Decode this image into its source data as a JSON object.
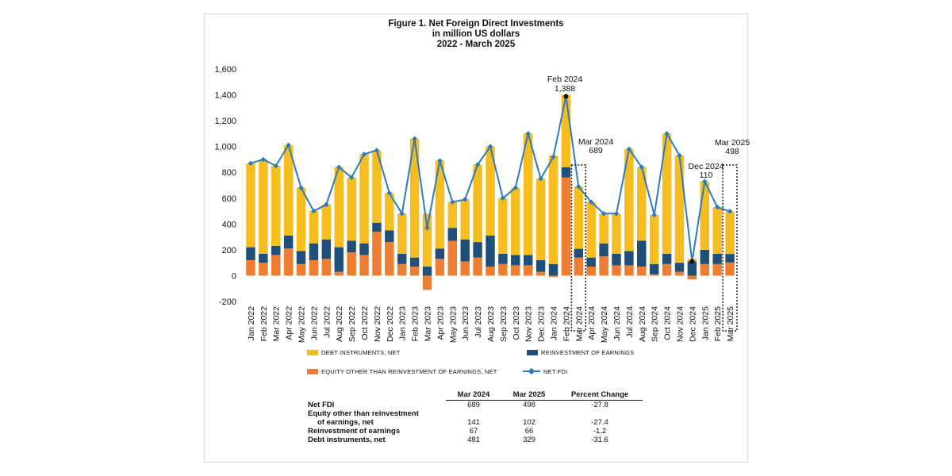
{
  "title": {
    "line1": "Figure 1. Net Foreign Direct Investments",
    "line2": "in million US dollars",
    "line3": "2022 - March 2025"
  },
  "colors": {
    "debt": "#f5bd1f",
    "reinvest": "#1f4e79",
    "equity": "#ed7d31",
    "net": "#2c7bbf"
  },
  "legend": {
    "debt": "DEBT INSTRUMENTS, NET",
    "reinvest": "REINVESTMENT OF EARNINGS",
    "equity": "EQUITY OTHER THAN REINVESTMENT OF EARNINGS, NET",
    "net": "NET FDI"
  },
  "chart_data": {
    "type": "bar",
    "stacked": true,
    "ylim": [
      -200,
      1600
    ],
    "yticks": [
      -200,
      0,
      200,
      400,
      600,
      800,
      1000,
      1200,
      1400,
      1600
    ],
    "ytick_labels": [
      "-200",
      "0",
      "200",
      "400",
      "600",
      "800",
      "1,000",
      "1,200",
      "1,400",
      "1,600"
    ],
    "categories": [
      "Jan 2022",
      "Feb 2022",
      "Mar 2022",
      "Apr 2022",
      "May 2022",
      "Jun 2022",
      "Jul 2022",
      "Aug 2022",
      "Sep 2022",
      "Oct 2022",
      "Nov 2022",
      "Dec 2022",
      "Jan 2023",
      "Feb 2023",
      "Mar 2023",
      "Apr 2023",
      "May 2023",
      "Jun 2023",
      "Jul 2023",
      "Aug 2023",
      "Sep 2023",
      "Oct 2023",
      "Nov 2023",
      "Dec 2023",
      "Jan 2024",
      "Feb 2024",
      "Mar 2024",
      "Apr 2024",
      "May 2024",
      "Jun 2024",
      "Jul 2024",
      "Aug 2024",
      "Sep 2024",
      "Oct 2024",
      "Nov 2024",
      "Dec 2024",
      "Jan 2025",
      "Feb 2025",
      "Mar 2025"
    ],
    "series": [
      {
        "name": "EQUITY OTHER THAN REINVESTMENT OF EARNINGS, NET",
        "values": [
          120,
          100,
          160,
          210,
          90,
          120,
          130,
          30,
          180,
          160,
          340,
          260,
          90,
          70,
          -110,
          130,
          270,
          110,
          140,
          70,
          90,
          80,
          80,
          30,
          -10,
          760,
          141,
          70,
          150,
          80,
          80,
          70,
          10,
          90,
          30,
          -30,
          90,
          90,
          102
        ]
      },
      {
        "name": "REINVESTMENT OF EARNINGS",
        "values": [
          100,
          70,
          70,
          100,
          100,
          130,
          150,
          190,
          90,
          90,
          70,
          90,
          80,
          70,
          70,
          80,
          100,
          170,
          120,
          240,
          80,
          80,
          80,
          90,
          90,
          80,
          67,
          70,
          100,
          90,
          110,
          200,
          80,
          80,
          70,
          110,
          110,
          80,
          66
        ]
      },
      {
        "name": "DEBT INSTRUMENTS, NET",
        "values": [
          650,
          730,
          620,
          700,
          490,
          250,
          270,
          620,
          490,
          690,
          560,
          290,
          310,
          920,
          410,
          680,
          200,
          310,
          600,
          690,
          430,
          520,
          940,
          630,
          840,
          560,
          481,
          430,
          230,
          310,
          790,
          570,
          380,
          930,
          830,
          20,
          530,
          360,
          329
        ]
      },
      {
        "name": "NET FDI",
        "type": "line",
        "values": [
          870,
          900,
          850,
          1010,
          680,
          500,
          550,
          840,
          760,
          940,
          970,
          640,
          480,
          1060,
          370,
          890,
          570,
          590,
          860,
          1000,
          600,
          680,
          1100,
          750,
          920,
          1388,
          689,
          570,
          480,
          480,
          980,
          840,
          470,
          1100,
          930,
          110,
          730,
          530,
          498
        ]
      }
    ],
    "annotations": [
      {
        "label": "Feb 2024",
        "value": "1,388",
        "index": 25
      },
      {
        "label": "Mar 2024",
        "value": "689",
        "index": 26
      },
      {
        "label": "Dec 2024",
        "value": "110",
        "index": 35
      },
      {
        "label": "Mar 2025",
        "value": "498",
        "index": 38
      }
    ],
    "highlight_indices": [
      26,
      38
    ]
  },
  "table": {
    "headers": [
      "Mar 2024",
      "Mar 2025",
      "Percent Change"
    ],
    "rows": [
      {
        "label": "Net FDI",
        "label2": "",
        "values": [
          "689",
          "498",
          "-27.8"
        ]
      },
      {
        "label": "Equity other than reinvestment",
        "label2": "of earnings, net",
        "values": [
          "141",
          "102",
          "-27.4"
        ]
      },
      {
        "label": "Reinvestment of earnings",
        "label2": "",
        "values": [
          "67",
          "66",
          "-1.2"
        ]
      },
      {
        "label": "Debt instruments, net",
        "label2": "",
        "values": [
          "481",
          "329",
          "-31.6"
        ]
      }
    ]
  }
}
